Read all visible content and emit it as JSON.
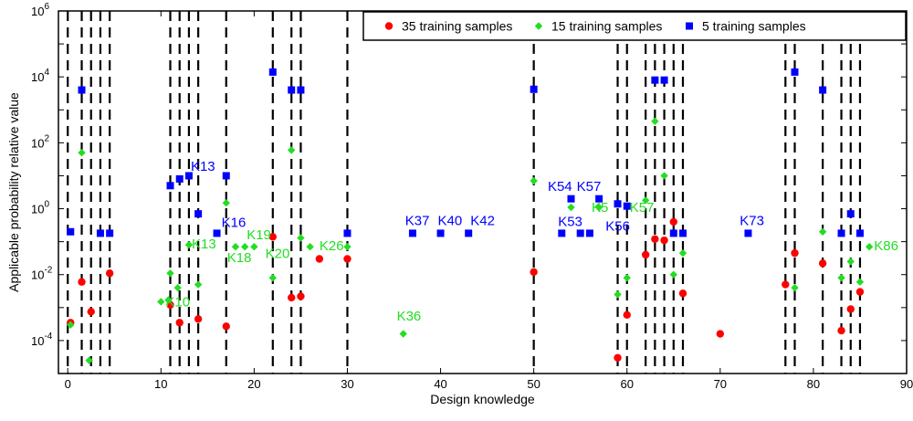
{
  "chart_data": {
    "type": "scatter",
    "xlabel": "Design knowledge",
    "ylabel": "Applicable probability relative value",
    "xlim": [
      -1,
      90
    ],
    "ylim_log10": [
      -5,
      6
    ],
    "yscale": "log",
    "x_ticks": [
      0,
      10,
      20,
      30,
      40,
      50,
      60,
      70,
      80,
      90
    ],
    "y_ticks": [
      {
        "exp": -4,
        "base": "10",
        "sup": "-4"
      },
      {
        "exp": -2,
        "base": "10",
        "sup": "-2"
      },
      {
        "exp": 0,
        "base": "10",
        "sup": "0"
      },
      {
        "exp": 2,
        "base": "10",
        "sup": "2"
      },
      {
        "exp": 4,
        "base": "10",
        "sup": "4"
      },
      {
        "exp": 6,
        "base": "10",
        "sup": "6"
      }
    ],
    "grid": false,
    "legend_position": "top-right",
    "dashed_lines_x": [
      0,
      1.5,
      2.5,
      3.5,
      4.5,
      11,
      12,
      13,
      14,
      17,
      22,
      24,
      25,
      30,
      50,
      59,
      60,
      62,
      63,
      64,
      65,
      66,
      77,
      78,
      81,
      83,
      84,
      85
    ],
    "series": [
      {
        "name": "35 training samples",
        "color": "#ff0000",
        "marker": "circle",
        "points": [
          [
            0.3,
            0.00035
          ],
          [
            1.5,
            0.006
          ],
          [
            2.5,
            0.00075
          ],
          [
            4.5,
            0.011
          ],
          [
            11,
            0.0012
          ],
          [
            12,
            0.00035
          ],
          [
            14,
            0.00045
          ],
          [
            17,
            0.00027
          ],
          [
            22,
            0.14
          ],
          [
            24,
            0.002
          ],
          [
            25,
            0.0022
          ],
          [
            27,
            0.03
          ],
          [
            30,
            0.03
          ],
          [
            50,
            0.012
          ],
          [
            59,
            3e-05
          ],
          [
            60,
            0.0006
          ],
          [
            62,
            0.04
          ],
          [
            63,
            0.12
          ],
          [
            64,
            0.11
          ],
          [
            65,
            0.4
          ],
          [
            66,
            0.0027
          ],
          [
            70,
            0.00016
          ],
          [
            77,
            0.005
          ],
          [
            78,
            0.045
          ],
          [
            81,
            0.022
          ],
          [
            83,
            0.0002
          ],
          [
            84,
            0.0009
          ],
          [
            85,
            0.003
          ]
        ]
      },
      {
        "name": "15 training samples",
        "color": "#22dd22",
        "marker": "diamond",
        "points": [
          [
            0.3,
            0.0003
          ],
          [
            1.5,
            50
          ],
          [
            2.3,
            2.5e-05
          ],
          [
            10,
            0.0015
          ],
          [
            10.8,
            0.0017
          ],
          [
            11,
            0.011
          ],
          [
            11.8,
            0.004
          ],
          [
            13,
            0.08
          ],
          [
            14,
            0.005
          ],
          [
            17,
            1.5
          ],
          [
            18,
            0.07
          ],
          [
            19,
            0.07
          ],
          [
            20,
            0.07
          ],
          [
            22,
            0.008
          ],
          [
            24,
            60
          ],
          [
            25,
            0.13
          ],
          [
            26,
            0.07
          ],
          [
            30,
            0.07
          ],
          [
            36,
            0.00016
          ],
          [
            50,
            7
          ],
          [
            54,
            1.1
          ],
          [
            57,
            1.1
          ],
          [
            59,
            0.0025
          ],
          [
            60,
            0.008
          ],
          [
            62,
            1.8
          ],
          [
            63,
            450
          ],
          [
            64,
            10
          ],
          [
            65,
            0.01
          ],
          [
            66,
            0.045
          ],
          [
            78,
            0.004
          ],
          [
            81,
            0.2
          ],
          [
            83,
            0.008
          ],
          [
            84,
            0.025
          ],
          [
            85,
            0.006
          ],
          [
            86,
            0.07
          ]
        ]
      },
      {
        "name": "5 training samples",
        "color": "#0000ff",
        "marker": "square",
        "points": [
          [
            0.3,
            0.2
          ],
          [
            1.5,
            4000
          ],
          [
            3.5,
            0.18
          ],
          [
            4.5,
            0.18
          ],
          [
            11,
            5
          ],
          [
            12,
            8
          ],
          [
            13,
            10
          ],
          [
            14,
            0.7
          ],
          [
            16,
            0.18
          ],
          [
            17,
            10
          ],
          [
            22,
            14000
          ],
          [
            24,
            4000
          ],
          [
            25,
            4000
          ],
          [
            30,
            0.18
          ],
          [
            37,
            0.18
          ],
          [
            40,
            0.18
          ],
          [
            43,
            0.18
          ],
          [
            50,
            4200
          ],
          [
            53,
            0.18
          ],
          [
            54,
            2
          ],
          [
            55,
            0.18
          ],
          [
            56,
            0.18
          ],
          [
            57,
            2
          ],
          [
            59,
            1.4
          ],
          [
            60,
            1.2
          ],
          [
            63,
            8000
          ],
          [
            64,
            8000
          ],
          [
            65,
            0.18
          ],
          [
            66,
            0.18
          ],
          [
            73,
            0.18
          ],
          [
            78,
            14000
          ],
          [
            81,
            4000
          ],
          [
            83,
            0.18
          ],
          [
            84,
            0.7
          ],
          [
            85,
            0.18
          ]
        ]
      }
    ],
    "annotations": [
      {
        "text": "K13",
        "x": 13.2,
        "y": 14,
        "color": "#0000ff"
      },
      {
        "text": "K16",
        "x": 16.5,
        "y": 0.28,
        "color": "#0000ff"
      },
      {
        "text": "K37",
        "x": 36.2,
        "y": 0.32,
        "color": "#0000ff"
      },
      {
        "text": "K40",
        "x": 39.7,
        "y": 0.32,
        "color": "#0000ff"
      },
      {
        "text": "K42",
        "x": 43.2,
        "y": 0.32,
        "color": "#0000ff"
      },
      {
        "text": "K54",
        "x": 51.5,
        "y": 3.5,
        "color": "#0000ff"
      },
      {
        "text": "K57",
        "x": 54.6,
        "y": 3.5,
        "color": "#0000ff"
      },
      {
        "text": "K53",
        "x": 52.6,
        "y": 0.3,
        "color": "#0000ff"
      },
      {
        "text": "K56",
        "x": 57.7,
        "y": 0.22,
        "color": "#0000ff"
      },
      {
        "text": "K73",
        "x": 72.1,
        "y": 0.32,
        "color": "#0000ff"
      },
      {
        "text": "K10",
        "x": 10.5,
        "y": 0.0011,
        "color": "#22dd22"
      },
      {
        "text": "K13",
        "x": 13.3,
        "y": 0.062,
        "color": "#22dd22"
      },
      {
        "text": "K19",
        "x": 19.2,
        "y": 0.12,
        "color": "#22dd22"
      },
      {
        "text": "K18",
        "x": 17.1,
        "y": 0.024,
        "color": "#22dd22"
      },
      {
        "text": "K20",
        "x": 21.2,
        "y": 0.032,
        "color": "#22dd22"
      },
      {
        "text": "K26",
        "x": 27,
        "y": 0.055,
        "color": "#22dd22"
      },
      {
        "text": "K36",
        "x": 35.3,
        "y": 0.0004,
        "color": "#22dd22"
      },
      {
        "text": "K5",
        "x": 56.2,
        "y": 0.8,
        "color": "#22dd22"
      },
      {
        "text": "K57",
        "x": 60.3,
        "y": 0.8,
        "color": "#22dd22"
      },
      {
        "text": "K86",
        "x": 86.5,
        "y": 0.055,
        "color": "#22dd22"
      }
    ]
  }
}
